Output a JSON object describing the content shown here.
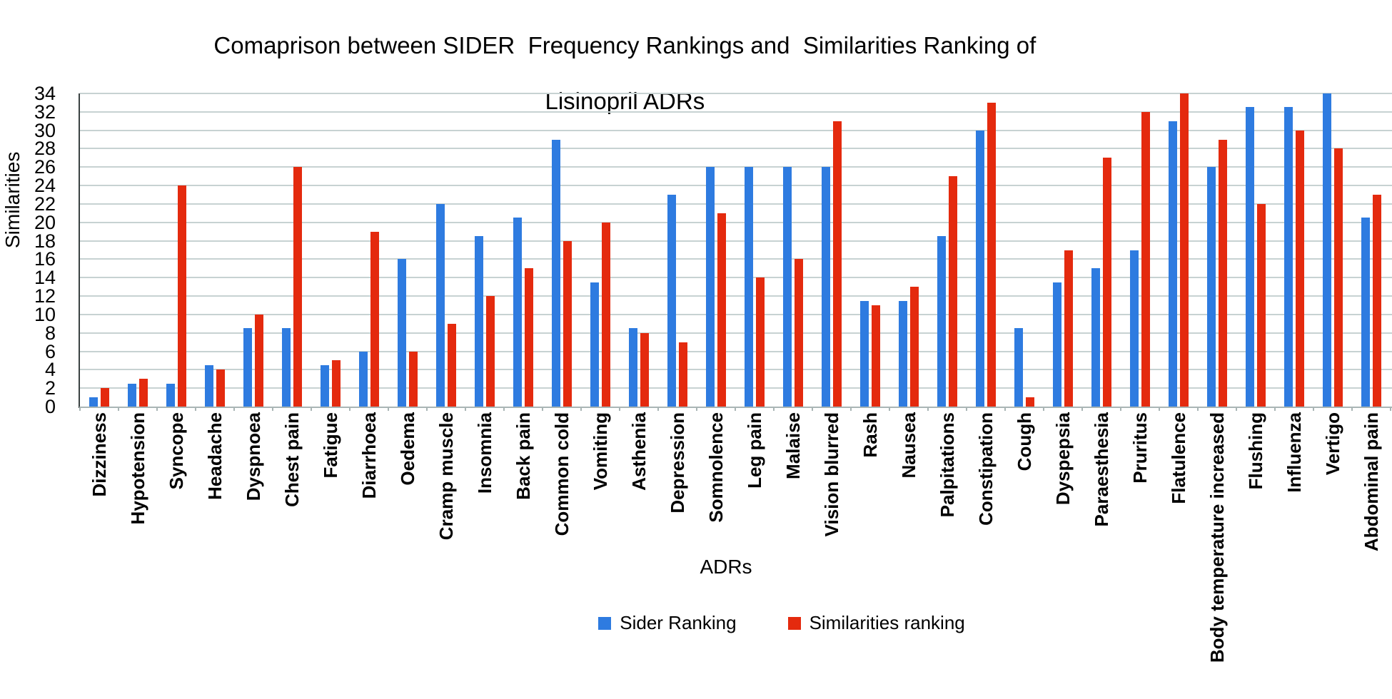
{
  "chart_data": {
    "type": "bar",
    "title": "Comaprison between SIDER  Frequency Rankings and  Similarities Ranking of Lisinopril ADRs",
    "title_line1": "Comaprison between SIDER  Frequency Rankings and  Similarities Ranking of",
    "title_line2": "Lisinopril ADRs",
    "xlabel": "ADRs",
    "ylabel": "Similarities",
    "ylim": [
      0,
      34
    ],
    "ytick_step": 2,
    "grid": true,
    "legend_position": "bottom-center",
    "categories": [
      "Dizziness",
      "Hypotension",
      "Syncope",
      "Headache",
      "Dyspnoea",
      "Chest pain",
      "Fatigue",
      "Diarrhoea",
      "Oedema",
      "Cramp muscle",
      "Insomnia",
      "Back pain",
      "Common cold",
      "Vomiting",
      "Asthenia",
      "Depression",
      "Somnolence",
      "Leg pain",
      "Malaise",
      "Vision blurred",
      "Rash",
      "Nausea",
      "Palpitations",
      "Constipation",
      "Cough",
      "Dyspepsia",
      "Paraesthesia",
      "Pruritus",
      "Flatulence",
      "Body temperature increased",
      "Flushing",
      "Influenza",
      "Vertigo",
      "Abdominal pain"
    ],
    "series": [
      {
        "name": "Sider Ranking",
        "color": "#2E7BE0",
        "values": [
          1,
          2.5,
          2.5,
          4.5,
          8.5,
          8.5,
          4.5,
          6,
          16,
          22,
          18.5,
          20.5,
          29,
          13.5,
          8.5,
          23,
          26,
          26,
          26,
          26,
          11.5,
          11.5,
          18.5,
          30,
          8.5,
          13.5,
          15,
          17,
          31,
          26,
          32.5,
          32.5,
          34,
          20.5
        ]
      },
      {
        "name": "Similarities ranking",
        "color": "#E42A0E",
        "values": [
          2,
          3,
          24,
          4,
          10,
          26,
          5,
          19,
          6,
          9,
          12,
          15,
          18,
          20,
          8,
          7,
          21,
          14,
          16,
          31,
          11,
          13,
          25,
          33,
          1,
          17,
          27,
          32,
          34,
          29,
          22,
          30,
          28,
          23
        ]
      }
    ],
    "gridline_color": "#c7d2d2",
    "text_color": "#000000"
  }
}
